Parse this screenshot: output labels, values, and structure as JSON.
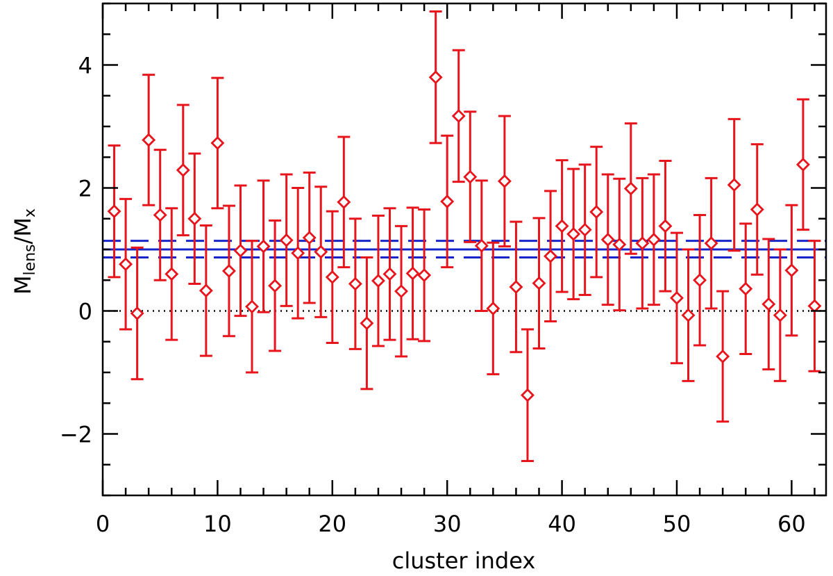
{
  "chart_data": {
    "type": "scatter",
    "title": "",
    "xlabel": "cluster index",
    "ylabel": {
      "main": "M",
      "sub1": "lens",
      "sep": "/M",
      "sub2": "x"
    },
    "xlim": [
      0,
      63
    ],
    "ylim": [
      -3,
      5
    ],
    "x_major_ticks": [
      0,
      10,
      20,
      30,
      40,
      50,
      60
    ],
    "x_tick_labels": [
      "0",
      "10",
      "20",
      "30",
      "40",
      "50",
      "60"
    ],
    "x_minor_step": 2,
    "y_major_ticks": [
      -2,
      0,
      2,
      4
    ],
    "y_tick_labels": [
      "−2",
      "0",
      "2",
      "4"
    ],
    "y_minor_step": 0.5,
    "grid": false,
    "colors": {
      "points": "#e8141b",
      "mean_line": "#1524c8",
      "zero_line": "#000000",
      "axes": "#000000"
    },
    "reference_lines": [
      {
        "y": 0,
        "style": "dotted",
        "color": "#000000"
      },
      {
        "y": 1.0,
        "style": "solid",
        "color": "#1524c8"
      },
      {
        "y": 1.14,
        "style": "dashed",
        "color": "#1524c8"
      },
      {
        "y": 0.87,
        "style": "dashed",
        "color": "#1524c8"
      }
    ],
    "series": [
      {
        "marker": "diamond",
        "x": [
          1,
          2,
          3,
          4,
          5,
          6,
          7,
          8,
          9,
          10,
          11,
          12,
          13,
          14,
          15,
          16,
          17,
          18,
          19,
          20,
          21,
          22,
          23,
          24,
          25,
          26,
          27,
          28,
          29,
          30,
          31,
          32,
          33,
          34,
          35,
          36,
          37,
          38,
          39,
          40,
          41,
          42,
          43,
          44,
          45,
          46,
          47,
          48,
          49,
          50,
          51,
          52,
          53,
          54,
          55,
          56,
          57,
          58,
          59,
          60,
          61,
          62
        ],
        "y": [
          1.62,
          0.76,
          -0.04,
          2.78,
          1.56,
          0.6,
          2.29,
          1.5,
          0.33,
          2.73,
          0.65,
          0.98,
          0.07,
          1.05,
          0.41,
          1.15,
          0.94,
          1.19,
          0.96,
          0.55,
          1.77,
          0.44,
          -0.2,
          0.49,
          0.6,
          0.32,
          0.61,
          0.58,
          3.8,
          1.78,
          3.17,
          2.18,
          1.06,
          0.04,
          2.11,
          0.39,
          -1.37,
          0.45,
          0.89,
          1.38,
          1.25,
          1.32,
          1.61,
          1.16,
          1.08,
          1.99,
          1.1,
          1.16,
          1.38,
          0.21,
          -0.07,
          0.5,
          1.1,
          -0.74,
          2.05,
          0.36,
          1.65,
          0.11,
          -0.07,
          0.66,
          2.38,
          0.08
        ],
        "err": [
          1.07,
          1.06,
          1.07,
          1.06,
          1.06,
          1.07,
          1.06,
          1.06,
          1.06,
          1.06,
          1.06,
          1.06,
          1.07,
          1.07,
          1.06,
          1.07,
          1.06,
          1.06,
          1.06,
          1.07,
          1.06,
          1.06,
          1.07,
          1.06,
          1.07,
          1.06,
          1.07,
          1.07,
          1.07,
          1.07,
          1.07,
          1.06,
          1.06,
          1.07,
          1.06,
          1.06,
          1.07,
          1.06,
          1.06,
          1.07,
          1.06,
          1.06,
          1.06,
          1.06,
          1.07,
          1.06,
          1.06,
          1.06,
          1.06,
          1.06,
          1.07,
          1.06,
          1.06,
          1.06,
          1.07,
          1.06,
          1.06,
          1.06,
          1.07,
          1.06,
          1.06,
          1.06
        ]
      }
    ]
  }
}
